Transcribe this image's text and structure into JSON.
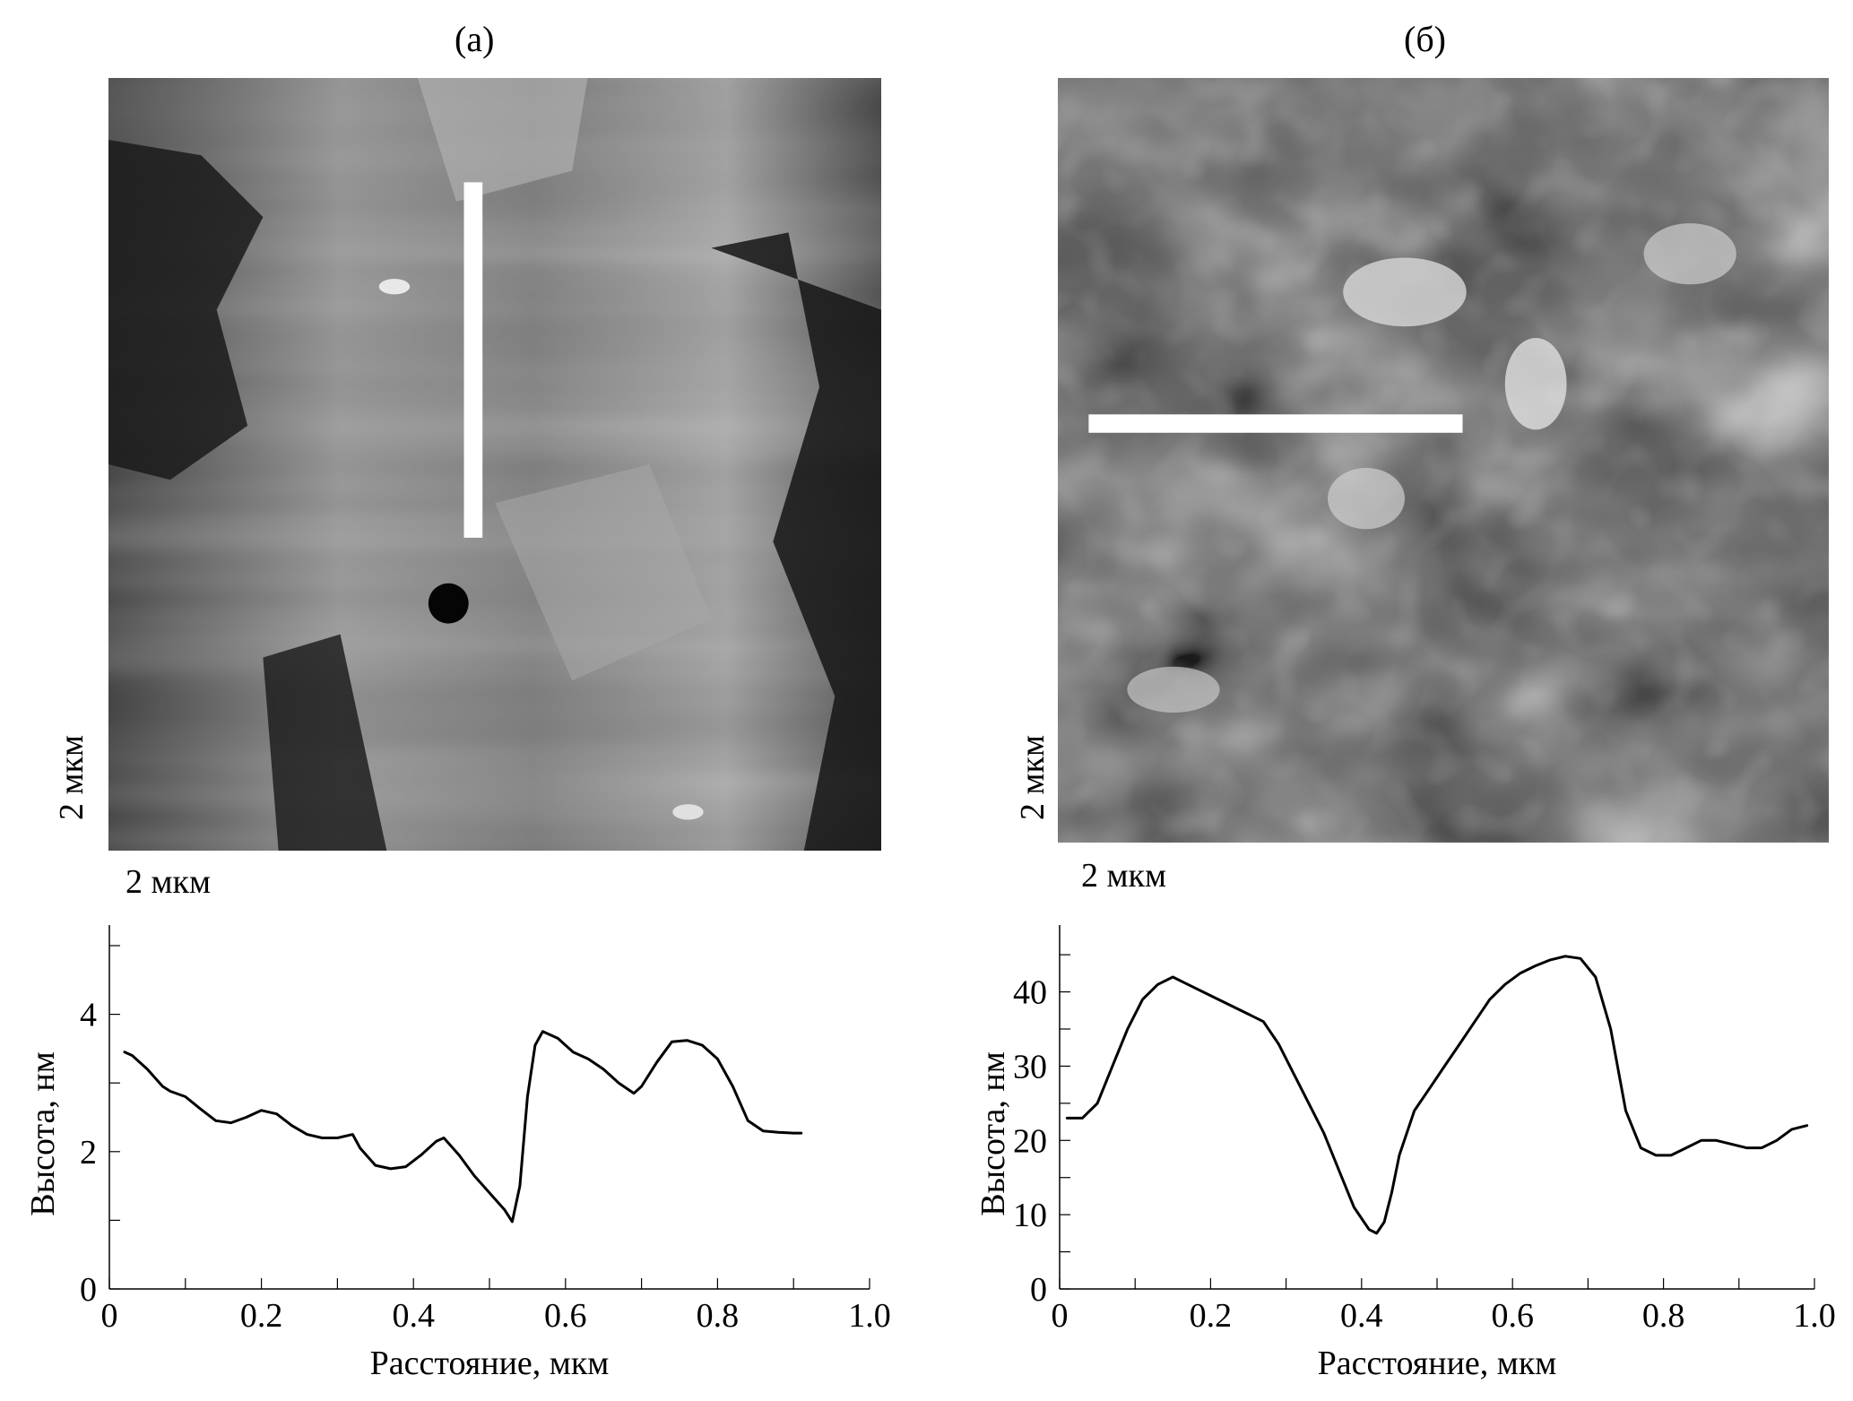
{
  "panels": [
    {
      "label": "(а)",
      "scale_x_label": "2 мкм",
      "scale_y_label": "2 мкм",
      "image_description_icon": "afm-height-map-a",
      "profile_line": "vertical"
    },
    {
      "label": "(б)",
      "scale_x_label": "2 мкм",
      "scale_y_label": "2 мкм",
      "image_description_icon": "afm-height-map-b",
      "profile_line": "horizontal"
    }
  ],
  "chart_data": [
    {
      "type": "line",
      "title": "",
      "xlabel": "Расстояние, мкм",
      "ylabel": "Высота, нм",
      "xlim": [
        0,
        1.0
      ],
      "ylim": [
        0,
        5.3
      ],
      "xticks": [
        0,
        0.2,
        0.4,
        0.6,
        0.8,
        1.0
      ],
      "xtick_labels": [
        "0",
        "0.2",
        "0.4",
        "0.6",
        "0.8",
        "1.0"
      ],
      "yticks": [
        0,
        2,
        4
      ],
      "ytick_labels": [
        "0",
        "2",
        "4"
      ],
      "series": [
        {
          "x": [
            0.02,
            0.03,
            0.05,
            0.07,
            0.08,
            0.1,
            0.12,
            0.14,
            0.16,
            0.18,
            0.2,
            0.22,
            0.24,
            0.26,
            0.28,
            0.3,
            0.32,
            0.33,
            0.35,
            0.37,
            0.39,
            0.41,
            0.43,
            0.44,
            0.46,
            0.48,
            0.5,
            0.52,
            0.53,
            0.54,
            0.55,
            0.56,
            0.57,
            0.59,
            0.61,
            0.63,
            0.65,
            0.67,
            0.69,
            0.7,
            0.72,
            0.74,
            0.76,
            0.78,
            0.8,
            0.82,
            0.84,
            0.86,
            0.88,
            0.9,
            0.91
          ],
          "y": [
            3.45,
            3.4,
            3.2,
            2.95,
            2.88,
            2.8,
            2.62,
            2.45,
            2.42,
            2.5,
            2.6,
            2.55,
            2.38,
            2.25,
            2.2,
            2.2,
            2.25,
            2.05,
            1.8,
            1.75,
            1.78,
            1.95,
            2.15,
            2.2,
            1.95,
            1.65,
            1.4,
            1.15,
            0.98,
            1.5,
            2.8,
            3.55,
            3.75,
            3.65,
            3.45,
            3.35,
            3.2,
            3.0,
            2.85,
            2.95,
            3.3,
            3.6,
            3.62,
            3.55,
            3.35,
            2.95,
            2.45,
            2.3,
            2.28,
            2.27,
            2.27
          ]
        }
      ]
    },
    {
      "type": "line",
      "title": "",
      "xlabel": "Расстояние, мкм",
      "ylabel": "Высота, нм",
      "xlim": [
        0,
        1.0
      ],
      "ylim": [
        0,
        49
      ],
      "xticks": [
        0,
        0.2,
        0.4,
        0.6,
        0.8,
        1.0
      ],
      "xtick_labels": [
        "0",
        "0.2",
        "0.4",
        "0.6",
        "0.8",
        "1.0"
      ],
      "yticks": [
        0,
        10,
        20,
        30,
        40
      ],
      "ytick_labels": [
        "0",
        "10",
        "20",
        "30",
        "40"
      ],
      "series": [
        {
          "x": [
            0.01,
            0.03,
            0.05,
            0.07,
            0.09,
            0.11,
            0.13,
            0.15,
            0.17,
            0.19,
            0.21,
            0.23,
            0.25,
            0.27,
            0.29,
            0.31,
            0.33,
            0.35,
            0.37,
            0.39,
            0.41,
            0.42,
            0.43,
            0.44,
            0.45,
            0.47,
            0.49,
            0.51,
            0.53,
            0.55,
            0.57,
            0.59,
            0.61,
            0.63,
            0.65,
            0.67,
            0.69,
            0.71,
            0.73,
            0.75,
            0.77,
            0.79,
            0.81,
            0.83,
            0.85,
            0.87,
            0.89,
            0.91,
            0.93,
            0.95,
            0.97,
            0.99
          ],
          "y": [
            23,
            23,
            25,
            30,
            35,
            39,
            41,
            42,
            41,
            40,
            39,
            38,
            37,
            36,
            33,
            29,
            25,
            21,
            16,
            11,
            8,
            7.5,
            9,
            13,
            18,
            24,
            27,
            30,
            33,
            36,
            39,
            41,
            42.5,
            43.5,
            44.3,
            44.8,
            44.5,
            42,
            35,
            24,
            19,
            18,
            18,
            19,
            20,
            20,
            19.5,
            19,
            19,
            20,
            21.5,
            22
          ]
        }
      ]
    }
  ]
}
